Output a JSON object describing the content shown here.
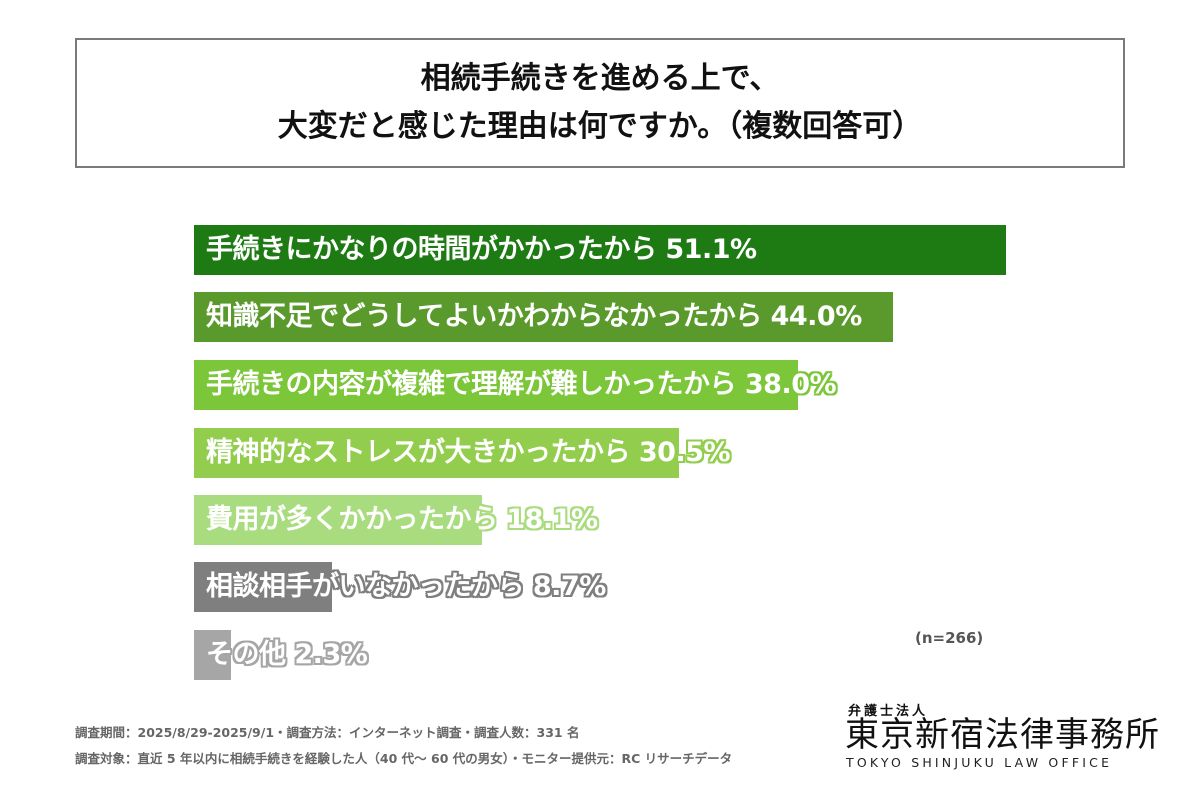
{
  "title": {
    "line1": "相続手続きを進める上で、",
    "line2": "大変だと感じた理由は何ですか。（複数回答可）"
  },
  "chart_data": {
    "type": "bar",
    "orientation": "horizontal",
    "title": "相続手続きを進める上で、大変だと感じた理由は何ですか。（複数回答可）",
    "xlabel": "",
    "ylabel": "",
    "unit": "%",
    "categories": [
      "手続きにかなりの時間がかかったから",
      "知識不足でどうしてよいかわからなかったから",
      "手続きの内容が複雑で理解が難しかったから",
      "精神的なストレスが大きかったから",
      "費用が多くかかったから",
      "相談相手がいなかったから",
      "その他"
    ],
    "values": [
      51.1,
      44.0,
      38.0,
      30.5,
      18.1,
      8.7,
      2.3
    ],
    "value_labels": [
      "51.1%",
      "44.0%",
      "38.0%",
      "30.5%",
      "18.1%",
      "8.7%",
      "2.3%"
    ],
    "colors": [
      "#1e7b14",
      "#5a9a2c",
      "#7cc63a",
      "#92cd4d",
      "#a9dc7e",
      "#7f7f7f",
      "#a6a6a6"
    ],
    "grid": false,
    "legend": "none",
    "annotations": [
      "(n=266)"
    ],
    "sample_size": 266
  },
  "bars": [
    {
      "label": "手続きにかなりの時間がかかったから 51.1%",
      "value": 51.1,
      "color": "#1e7b14",
      "outline": "#1e7b14"
    },
    {
      "label": "知識不足でどうしてよいかわからなかったから 44.0%",
      "value": 44.0,
      "color": "#5a9a2c",
      "outline": "#5a9a2c"
    },
    {
      "label": "手続きの内容が複雑で理解が難しかったから 38.0%",
      "value": 38.0,
      "color": "#7cc63a",
      "outline": "#7cc63a"
    },
    {
      "label": "精神的なストレスが大きかったから 30.5%",
      "value": 30.5,
      "color": "#92cd4d",
      "outline": "#92cd4d"
    },
    {
      "label": "費用が多くかかったから 18.1%",
      "value": 18.1,
      "color": "#a9dc7e",
      "outline": "#a9dc7e"
    },
    {
      "label": "相談相手がいなかったから 8.7%",
      "value": 8.7,
      "color": "#7f7f7f",
      "outline": "#7f7f7f"
    },
    {
      "label": "その他 2.3%",
      "value": 2.3,
      "color": "#a6a6a6",
      "outline": "#a6a6a6"
    }
  ],
  "sample_note": "(n=266)",
  "footer": {
    "line1": "調査期間：2025/8/29-2025/9/1・調査方法：インターネット調査・調査人数：331 名",
    "line2": "調査対象：直近 5 年以内に相続手続きを経験した人（40 代～ 60 代の男女）・モニター提供元：RC リサーチデータ"
  },
  "logo": {
    "sub": "弁護士法人",
    "main": "東京新宿法律事務所",
    "en": "TOKYO SHINJUKU LAW OFFICE"
  }
}
